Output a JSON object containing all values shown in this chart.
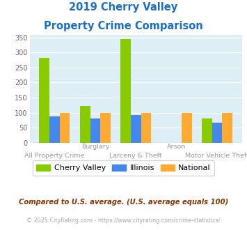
{
  "title_line1": "2019 Cherry Valley",
  "title_line2": "Property Crime Comparison",
  "categories": [
    "All Property Crime",
    "Burglary",
    "Larceny & Theft",
    "Arson",
    "Motor Vehicle Theft"
  ],
  "cherry_valley": [
    283,
    122,
    345,
    0,
    81
  ],
  "illinois": [
    87,
    81,
    93,
    0,
    67
  ],
  "national": [
    100,
    100,
    100,
    100,
    100
  ],
  "color_cherry": "#88cc00",
  "color_illinois": "#4488ee",
  "color_national": "#ffaa33",
  "ylim": [
    0,
    360
  ],
  "yticks": [
    0,
    50,
    100,
    150,
    200,
    250,
    300,
    350
  ],
  "bg_color": "#ddeef5",
  "footnote1": "Compared to U.S. average. (U.S. average equals 100)",
  "footnote2": "© 2025 CityRating.com - https://www.cityrating.com/crime-statistics/",
  "title_color": "#1a6fcc",
  "label_color_top": "#9999aa",
  "label_color_bottom": "#9999aa",
  "footnote1_color": "#883300",
  "footnote2_color": "#aaaaaa"
}
